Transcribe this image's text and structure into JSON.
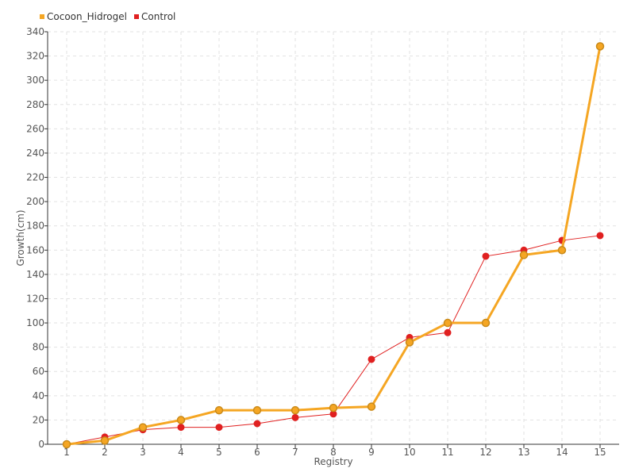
{
  "chart_data": {
    "type": "line",
    "title": "",
    "xlabel": "Registry",
    "ylabel": "Growth(cm)",
    "categories": [
      "1",
      "2",
      "3",
      "4",
      "5",
      "6",
      "7",
      "8",
      "9",
      "10",
      "11",
      "12",
      "13",
      "14",
      "15"
    ],
    "ylim": [
      0,
      340
    ],
    "yticks": [
      0,
      20,
      40,
      60,
      80,
      100,
      120,
      140,
      160,
      180,
      200,
      220,
      240,
      260,
      280,
      300,
      320,
      340
    ],
    "grid": true,
    "legend_position": "top-left",
    "series": [
      {
        "name": "Cocoon_Hidrogel",
        "color": "#f5a623",
        "values": [
          0,
          3,
          14,
          20,
          28,
          28,
          28,
          30,
          31,
          84,
          100,
          100,
          156,
          160,
          328
        ]
      },
      {
        "name": "Control",
        "color": "#e02020",
        "values": [
          0,
          6,
          12,
          14,
          14,
          17,
          22,
          25,
          70,
          88,
          92,
          155,
          160,
          168,
          172
        ]
      }
    ]
  }
}
